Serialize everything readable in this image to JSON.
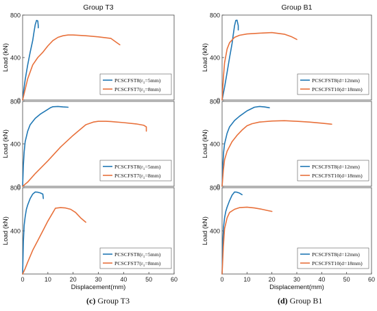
{
  "captions": {
    "left": {
      "letter": "(c)",
      "text": "Group T3"
    },
    "right": {
      "letter": "(d)",
      "text": "Group B1"
    }
  },
  "colors": {
    "blue": "#1f77b4",
    "orange": "#e8703a",
    "axis": "#444444",
    "grid": "#e6e6e6"
  },
  "chart_data": [
    {
      "id": "T3-1",
      "type": "line",
      "group_title": "Group T3",
      "ylabel": "Load (kN)",
      "xlabel": "",
      "xlim": [
        0,
        60
      ],
      "ylim": [
        0,
        800
      ],
      "yticks": [
        0,
        400,
        800
      ],
      "xticks": [],
      "legend_position": "lower-right",
      "series": [
        {
          "name": "PCSCFST8(r1=5mm)",
          "legend_main": "PCSCFST8(r",
          "legend_sub": "1",
          "legend_tail": "=5mm)",
          "color": "blue",
          "x": [
            0,
            0.5,
            1,
            2,
            3,
            4,
            4.5,
            5,
            5.5,
            6,
            6.2,
            6.2
          ],
          "y": [
            0,
            100,
            190,
            330,
            450,
            560,
            640,
            710,
            750,
            745,
            700,
            680
          ]
        },
        {
          "name": "PCSCFST7(r1=8mm)",
          "legend_main": "PCSCFST7(r",
          "legend_sub": "1",
          "legend_tail": "=8mm)",
          "color": "orange",
          "x": [
            0,
            1,
            2,
            4,
            6,
            8,
            10,
            12,
            14,
            16,
            18,
            20,
            25,
            30,
            35,
            37,
            38.5
          ],
          "y": [
            0,
            100,
            200,
            330,
            400,
            450,
            510,
            560,
            590,
            605,
            612,
            612,
            605,
            595,
            580,
            545,
            520
          ]
        }
      ]
    },
    {
      "id": "T3-2",
      "type": "line",
      "ylabel": "Load (kN)",
      "xlabel": "",
      "xlim": [
        0,
        60
      ],
      "ylim": [
        0,
        800
      ],
      "yticks": [
        0,
        400,
        800
      ],
      "xticks": [],
      "legend_position": "lower-right",
      "series": [
        {
          "name": "PCSCFST8(r1=5mm)",
          "legend_main": "PCSCFST8(r",
          "legend_sub": "1",
          "legend_tail": "=5mm)",
          "color": "blue",
          "x": [
            0,
            0.3,
            0.6,
            1,
            2,
            3,
            5,
            7,
            9,
            11,
            12,
            14,
            16,
            18
          ],
          "y": [
            0,
            200,
            320,
            420,
            520,
            580,
            640,
            680,
            710,
            740,
            750,
            752,
            748,
            745
          ]
        },
        {
          "name": "PCSCFST7(r1=8mm)",
          "legend_main": "PCSCFST7(r",
          "legend_sub": "1",
          "legend_tail": "=8mm)",
          "color": "orange",
          "x": [
            0,
            2,
            5,
            10,
            15,
            20,
            25,
            28,
            30,
            33,
            35,
            40,
            45,
            48,
            49,
            49
          ],
          "y": [
            0,
            40,
            120,
            240,
            370,
            480,
            580,
            605,
            612,
            612,
            610,
            600,
            588,
            575,
            560,
            520
          ]
        }
      ]
    },
    {
      "id": "T3-3",
      "type": "line",
      "ylabel": "Load (kN)",
      "xlabel": "Displacement(mm)",
      "xlim": [
        0,
        60
      ],
      "ylim": [
        0,
        800
      ],
      "yticks": [
        400,
        800
      ],
      "xticks": [
        0,
        10,
        20,
        30,
        40,
        50,
        60
      ],
      "legend_position": "lower-right",
      "series": [
        {
          "name": "PCSCFST8(r1=5mm)",
          "legend_main": "PCSCFST8(r",
          "legend_sub": "1",
          "legend_tail": "=5mm)",
          "color": "blue",
          "x": [
            0,
            0.3,
            0.6,
            1,
            1.5,
            2,
            3,
            4,
            5,
            6,
            7,
            8,
            8.2
          ],
          "y": [
            0,
            300,
            450,
            530,
            600,
            640,
            700,
            740,
            760,
            758,
            752,
            740,
            700
          ]
        },
        {
          "name": "PCSCFST7(r1=8mm)",
          "legend_main": "PCSCFST7(r",
          "legend_sub": "1",
          "legend_tail": "=8mm)",
          "color": "orange",
          "x": [
            0,
            1,
            2,
            4,
            6,
            8,
            10,
            12,
            13,
            15,
            17,
            19,
            21,
            23,
            25
          ],
          "y": [
            0,
            50,
            110,
            220,
            310,
            400,
            490,
            570,
            610,
            615,
            612,
            600,
            570,
            520,
            480
          ]
        }
      ]
    },
    {
      "id": "B1-1",
      "type": "line",
      "group_title": "Group B1",
      "ylabel": "Load (kN)",
      "xlabel": "",
      "xlim": [
        0,
        60
      ],
      "ylim": [
        0,
        800
      ],
      "yticks": [
        0,
        400,
        800
      ],
      "xticks": [],
      "legend_position": "lower-right",
      "series": [
        {
          "name": "PCSCFST8(d=12mm)",
          "legend_main": "PCSCFST8(d=12mm)",
          "color": "blue",
          "x": [
            0,
            0.5,
            1,
            2,
            3,
            4,
            4.5,
            5,
            5.5,
            6,
            6.5,
            6.5
          ],
          "y": [
            0,
            60,
            120,
            260,
            400,
            530,
            620,
            700,
            750,
            752,
            700,
            660
          ]
        },
        {
          "name": "PCSCFST10(d=18mm)",
          "legend_main": "PCSCFST10(d=18mm)",
          "color": "orange",
          "x": [
            0,
            0.5,
            1,
            2,
            3,
            5,
            7,
            10,
            15,
            20,
            25,
            28,
            30
          ],
          "y": [
            0,
            200,
            350,
            480,
            540,
            590,
            610,
            622,
            630,
            635,
            620,
            595,
            570
          ]
        }
      ]
    },
    {
      "id": "B1-2",
      "type": "line",
      "ylabel": "Load (kN)",
      "xlabel": "",
      "xlim": [
        0,
        60
      ],
      "ylim": [
        0,
        800
      ],
      "yticks": [
        0,
        400,
        800
      ],
      "xticks": [],
      "legend_position": "lower-right",
      "series": [
        {
          "name": "PCSCFST8(d=12mm)",
          "legend_main": "PCSCFST8(d=12mm)",
          "color": "blue",
          "x": [
            0,
            0.3,
            0.6,
            1,
            2,
            3,
            5,
            7,
            10,
            13,
            15,
            17,
            19
          ],
          "y": [
            0,
            200,
            320,
            400,
            500,
            560,
            620,
            660,
            710,
            745,
            752,
            748,
            740
          ]
        },
        {
          "name": "PCSCFST10(d=18mm)",
          "legend_main": "PCSCFST10(d=18mm)",
          "color": "orange",
          "x": [
            0,
            0.5,
            1,
            2,
            4,
            6,
            8,
            10,
            12,
            15,
            20,
            25,
            30,
            35,
            40,
            44
          ],
          "y": [
            0,
            150,
            250,
            330,
            420,
            480,
            530,
            570,
            590,
            605,
            615,
            618,
            612,
            605,
            595,
            585
          ]
        }
      ]
    },
    {
      "id": "B1-3",
      "type": "line",
      "ylabel": "Load (kN)",
      "xlabel": "Displacement(mm)",
      "xlim": [
        0,
        60
      ],
      "ylim": [
        0,
        800
      ],
      "yticks": [
        400,
        800
      ],
      "xticks": [
        0,
        10,
        20,
        30,
        40,
        50,
        60
      ],
      "legend_position": "lower-right",
      "series": [
        {
          "name": "PCSCFST8(d=12mm)",
          "legend_main": "PCSCFST8(d=12mm)",
          "color": "blue",
          "x": [
            0,
            0.3,
            0.6,
            1,
            1.5,
            2,
            3,
            4,
            5,
            6,
            7,
            8
          ],
          "y": [
            0,
            300,
            440,
            520,
            580,
            620,
            680,
            730,
            760,
            758,
            750,
            735
          ]
        },
        {
          "name": "PCSCFST10(d=18mm)",
          "legend_main": "PCSCFST10(d=18mm)",
          "color": "orange",
          "x": [
            0,
            0.5,
            1,
            2,
            3,
            5,
            7,
            10,
            13,
            16,
            18,
            20
          ],
          "y": [
            0,
            250,
            420,
            520,
            570,
            600,
            615,
            620,
            612,
            600,
            590,
            580
          ]
        }
      ]
    }
  ]
}
